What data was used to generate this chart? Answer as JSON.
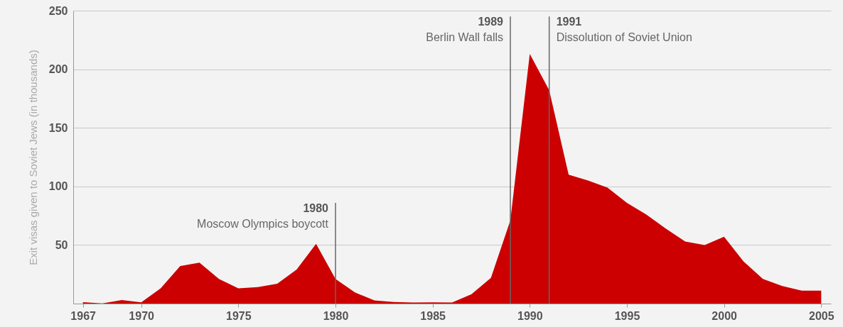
{
  "chart_data": {
    "type": "area",
    "ylabel": "Exit visas given to Soviet Jews (in thousands)",
    "x": [
      1967,
      1968,
      1969,
      1970,
      1971,
      1972,
      1973,
      1974,
      1975,
      1976,
      1977,
      1978,
      1979,
      1980,
      1981,
      1982,
      1983,
      1984,
      1985,
      1986,
      1987,
      1988,
      1989,
      1990,
      1991,
      1992,
      1993,
      1994,
      1995,
      1996,
      1997,
      1998,
      1999,
      2000,
      2001,
      2002,
      2003,
      2004,
      2005
    ],
    "series": [
      {
        "color": "#cc0000",
        "values": [
          1.2,
          0.2,
          3,
          1,
          13,
          32,
          35,
          21,
          13,
          14,
          17,
          29,
          51,
          21,
          9.5,
          2.7,
          1.3,
          0.9,
          1.1,
          0.9,
          8,
          22,
          71,
          213,
          182,
          110,
          105,
          99,
          86,
          76,
          64,
          53,
          50,
          57,
          36,
          21,
          15,
          11,
          11
        ]
      }
    ],
    "xlim": [
      1966.5,
      2005.5
    ],
    "xticks": [
      1967,
      1970,
      1975,
      1980,
      1985,
      1990,
      1995,
      2000,
      2005
    ],
    "ylim": [
      0,
      250
    ],
    "yticks": [
      50,
      100,
      150,
      200,
      250
    ],
    "grid": "y",
    "ref_lines": [
      {
        "axis": "x",
        "value": 1980,
        "label": "1980\nMoscow Olympics boycott"
      },
      {
        "axis": "x",
        "value": 1989,
        "label": "1989\nBerlin Wall falls"
      },
      {
        "axis": "x",
        "value": 1991,
        "label": "1991\nDissolution of Soviet Union"
      }
    ]
  }
}
